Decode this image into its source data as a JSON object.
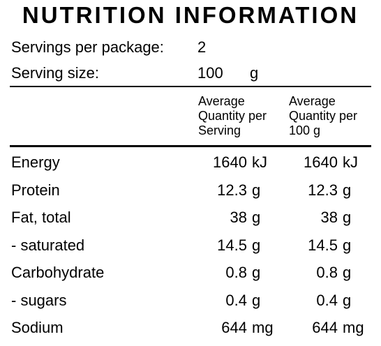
{
  "title": "NUTRITION INFORMATION",
  "servings": {
    "label": "Servings per package:",
    "value": "2"
  },
  "serving_size": {
    "label": "Serving size:",
    "value": "100",
    "unit": "g"
  },
  "columns": {
    "per_serving": [
      "Average",
      "Quantity per",
      "Serving"
    ],
    "per_100g": [
      "Average",
      "Quantity per",
      "100 g"
    ]
  },
  "rows": [
    {
      "name": "Energy",
      "serving": "1640",
      "serving_unit": "kJ",
      "per100": "1640",
      "per100_unit": "kJ"
    },
    {
      "name": "Protein",
      "serving": "12.3",
      "serving_unit": "g",
      "per100": "12.3",
      "per100_unit": "g"
    },
    {
      "name": "Fat, total",
      "serving": "38",
      "serving_unit": "g",
      "per100": "38",
      "per100_unit": "g"
    },
    {
      "name": "- saturated",
      "serving": "14.5",
      "serving_unit": "g",
      "per100": "14.5",
      "per100_unit": "g"
    },
    {
      "name": "Carbohydrate",
      "serving": "0.8",
      "serving_unit": "g",
      "per100": "0.8",
      "per100_unit": "g"
    },
    {
      "name": "- sugars",
      "serving": "0.4",
      "serving_unit": "g",
      "per100": "0.4",
      "per100_unit": "g"
    },
    {
      "name": "Sodium",
      "serving": "644",
      "serving_unit": "mg",
      "per100": "644",
      "per100_unit": "mg"
    }
  ]
}
